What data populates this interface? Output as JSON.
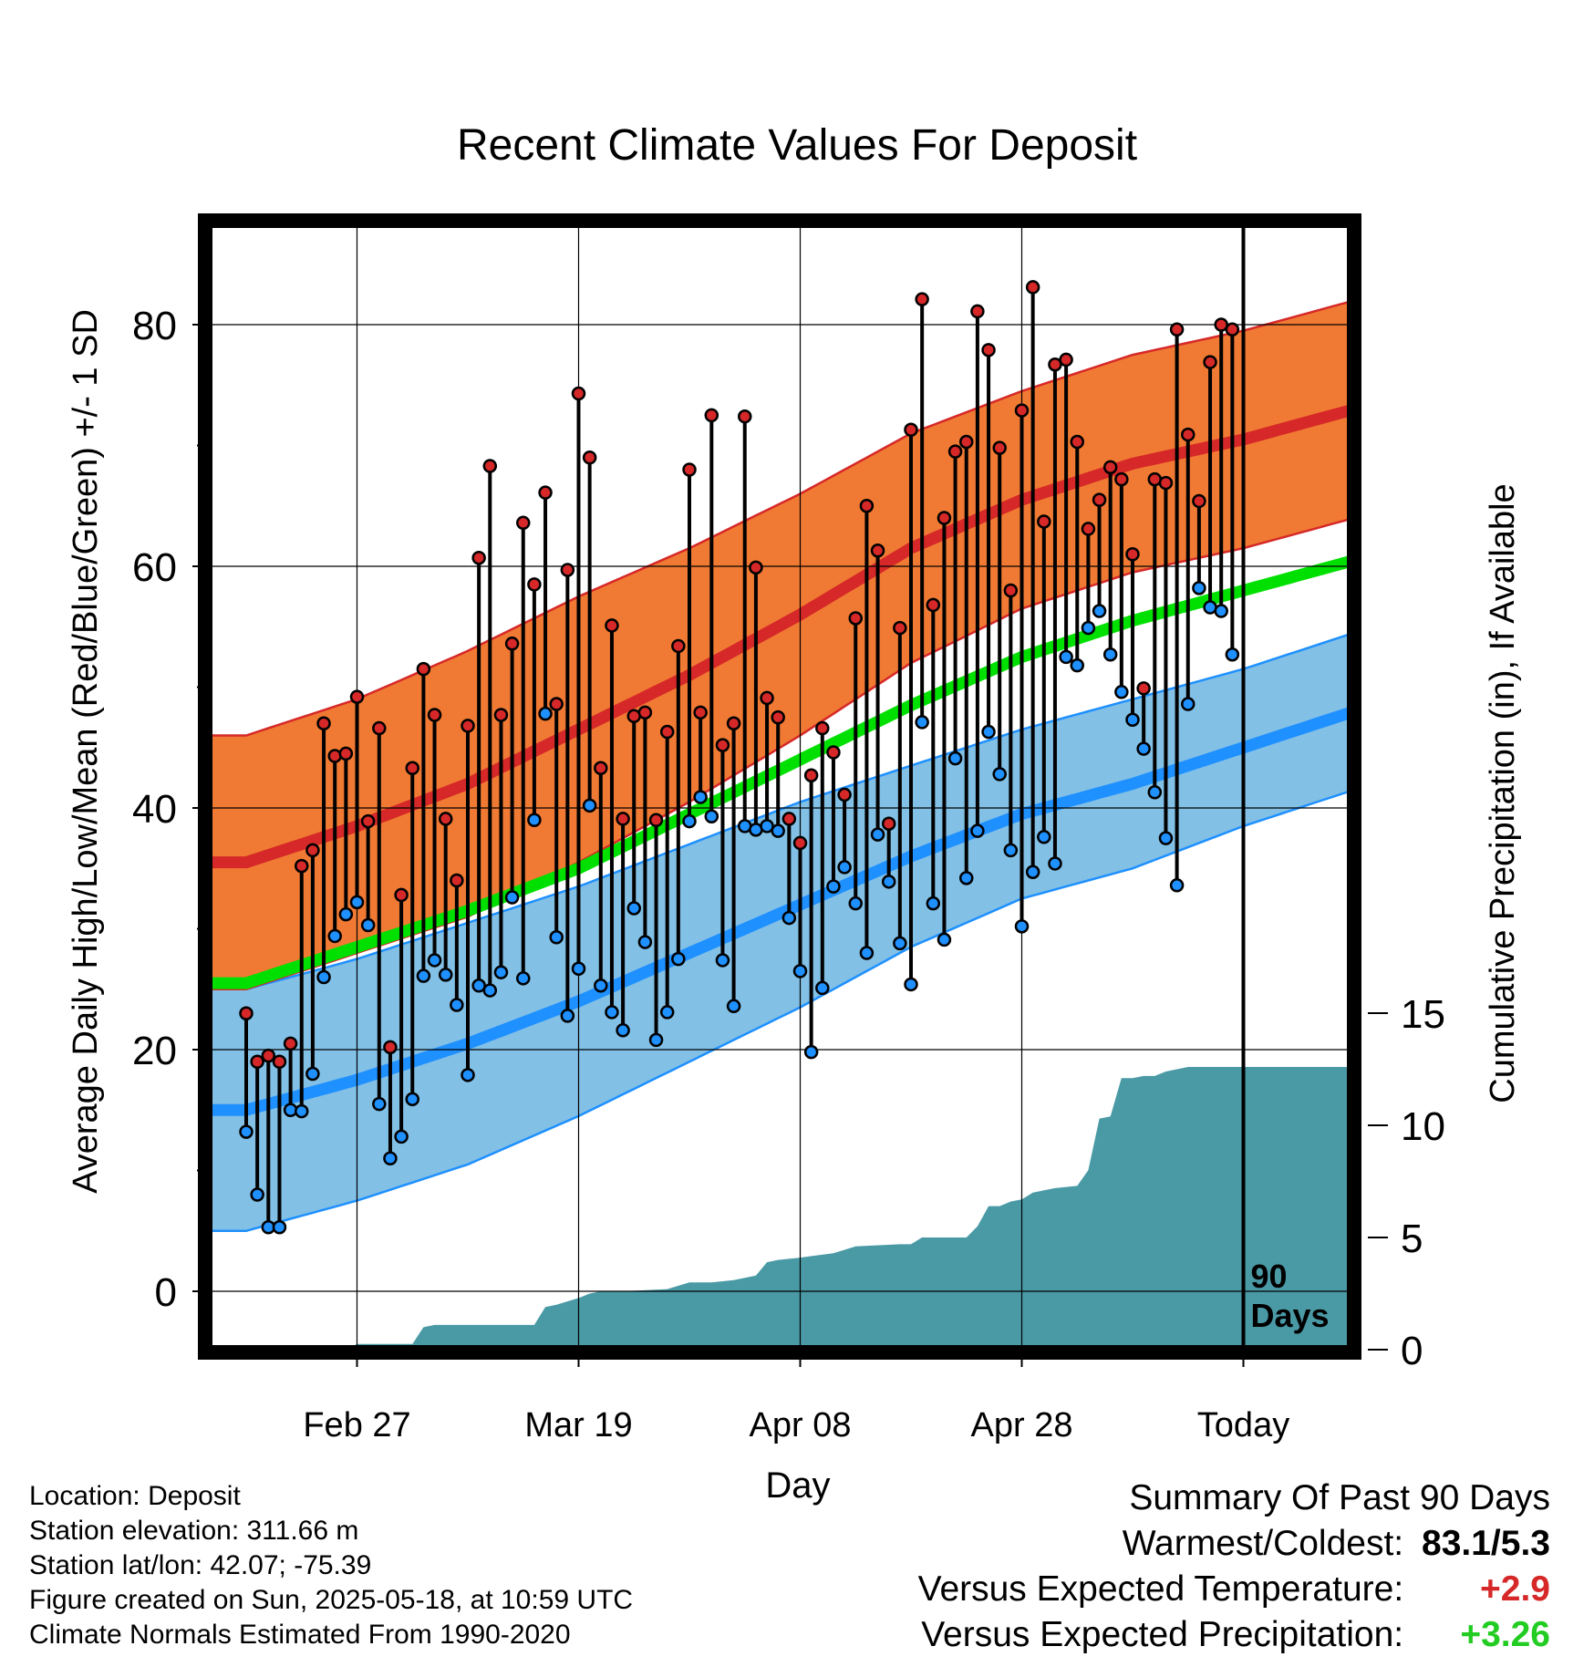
{
  "chart_data": {
    "type": "line",
    "title": "Recent Climate Values For Deposit",
    "xlabel": "Day",
    "ylabel": "Average Daily High/Low/Mean (Red/Blue/Green) +/- 1 SD",
    "y2label": "Cumulative Precipitation (in), If Available",
    "ylim": [
      -4,
      88
    ],
    "y2lim": [
      0,
      25
    ],
    "xlim": [
      0,
      100
    ],
    "x_ticks": [
      {
        "day": 10,
        "label": "Feb 27"
      },
      {
        "day": 30,
        "label": "Mar 19"
      },
      {
        "day": 50,
        "label": "Apr 08"
      },
      {
        "day": 70,
        "label": "Apr 28"
      },
      {
        "day": 90,
        "label": "Today"
      }
    ],
    "y_ticks": [
      0,
      20,
      40,
      60,
      80
    ],
    "y2_ticks": [
      0,
      5,
      10,
      15
    ],
    "today_marker": {
      "day": 90,
      "label_line1": "90",
      "label_line2": "Days"
    },
    "grid": true,
    "colors": {
      "high_band": "#f07a33",
      "high_line": "#d62828",
      "high_edge": "#d62828",
      "low_band": "#82c0e6",
      "low_line": "#1e90ff",
      "low_edge": "#1e90ff",
      "mean_line": "#00e000",
      "precip": "#4a9aa6",
      "high_marker": "#d62828",
      "low_marker": "#1e90ff"
    },
    "normals": {
      "days": [
        0,
        10,
        20,
        30,
        40,
        50,
        60,
        70,
        80,
        90,
        100
      ],
      "high_mean": [
        35.5,
        38.5,
        42,
        46.5,
        51,
        56,
        61.5,
        65.5,
        68.5,
        70.5,
        73
      ],
      "high_sd": [
        10.5,
        10.5,
        11,
        11,
        10.5,
        10,
        9.5,
        9,
        9,
        9,
        9
      ],
      "low_mean": [
        15,
        17.5,
        20.5,
        24,
        28,
        32,
        36,
        39.5,
        42,
        45,
        48
      ],
      "low_sd": [
        10,
        10,
        10,
        9.5,
        9,
        8.5,
        7.5,
        7,
        7,
        6.5,
        6.5
      ],
      "mean": [
        25.5,
        28.5,
        31.5,
        35,
        39.5,
        44,
        48.5,
        52.5,
        55.5,
        58,
        60.5
      ]
    },
    "daily": {
      "high": [
        23.0,
        19.0,
        19.5,
        19.0,
        20.5,
        35.2,
        36.5,
        47.0,
        44.3,
        44.5,
        49.2,
        38.9,
        46.6,
        20.2,
        32.8,
        43.3,
        51.5,
        47.7,
        39.1,
        34.0,
        46.8,
        60.7,
        68.3,
        47.7,
        53.6,
        63.6,
        58.5,
        66.1,
        48.6,
        59.7,
        74.3,
        69.0,
        43.3,
        55.1,
        39.1,
        47.6,
        47.9,
        39.0,
        46.3,
        53.4,
        68.0,
        47.9,
        72.5,
        45.2,
        47.0,
        72.4,
        59.9,
        49.1,
        47.5,
        39.1,
        37.1,
        42.7,
        46.6,
        44.6,
        41.1,
        55.7,
        65.0,
        61.3,
        38.7,
        54.9,
        71.3,
        82.1,
        56.8,
        64.0,
        69.5,
        70.3,
        81.1,
        77.9,
        69.8,
        58.0,
        72.9,
        83.1,
        63.7,
        76.7,
        77.1,
        70.3,
        63.1,
        65.5,
        68.2,
        67.2,
        61.0,
        49.9,
        67.2,
        66.9,
        79.6,
        70.9,
        65.4,
        76.9,
        80.0,
        79.6
      ],
      "low": [
        13.2,
        8.0,
        5.3,
        5.3,
        15.0,
        14.9,
        18.0,
        26.0,
        29.4,
        31.2,
        32.2,
        30.3,
        15.5,
        11.0,
        12.8,
        15.9,
        26.1,
        27.4,
        26.2,
        23.7,
        17.9,
        25.3,
        24.9,
        26.4,
        32.6,
        25.9,
        39.0,
        47.8,
        29.3,
        22.8,
        26.7,
        40.2,
        25.3,
        23.1,
        21.6,
        31.7,
        28.9,
        20.8,
        23.1,
        27.5,
        38.9,
        40.9,
        39.3,
        27.4,
        23.6,
        38.5,
        38.2,
        38.5,
        38.1,
        30.9,
        26.5,
        19.8,
        25.1,
        33.5,
        35.1,
        32.1,
        28.0,
        37.8,
        33.9,
        28.8,
        25.4,
        47.1,
        32.1,
        29.1,
        44.1,
        34.2,
        38.1,
        46.3,
        42.8,
        36.5,
        30.2,
        34.7,
        37.6,
        35.4,
        52.5,
        51.8,
        54.9,
        56.3,
        52.7,
        49.6,
        47.3,
        44.9,
        41.3,
        37.5,
        33.6,
        48.6,
        58.2,
        56.6,
        56.3,
        52.7
      ]
    },
    "cumulative_precip": {
      "days": [
        0,
        9,
        10,
        15,
        16,
        17,
        26,
        27,
        28,
        30,
        31,
        32,
        34,
        38,
        40,
        42,
        44,
        46,
        47,
        48,
        50,
        53,
        55,
        59,
        60,
        61,
        64,
        65,
        66,
        67,
        68,
        69,
        70,
        71,
        72,
        73,
        75,
        76,
        77,
        78,
        79,
        80,
        81,
        82,
        83,
        84,
        85,
        86,
        87,
        88,
        89,
        90,
        100
      ],
      "values": [
        0,
        0,
        0.25,
        0.25,
        1.0,
        1.1,
        1.1,
        1.9,
        2.0,
        2.3,
        2.5,
        2.6,
        2.6,
        2.7,
        3.0,
        3.0,
        3.1,
        3.3,
        3.9,
        4.0,
        4.1,
        4.3,
        4.6,
        4.7,
        4.7,
        5.0,
        5.0,
        5.0,
        5.5,
        6.4,
        6.4,
        6.6,
        6.7,
        7.0,
        7.1,
        7.2,
        7.3,
        8.0,
        10.3,
        10.4,
        12.1,
        12.1,
        12.2,
        12.2,
        12.4,
        12.5,
        12.6,
        12.6,
        12.6,
        12.6,
        12.6,
        12.6,
        12.6
      ]
    }
  },
  "info": {
    "location": "Location: Deposit",
    "elevation": "Station elevation: 311.66 m",
    "latlon": "Station lat/lon: 42.07; -75.39",
    "created": "Figure created on Sun, 2025-05-18, at 10:59 UTC",
    "normals": "Climate Normals Estimated From 1990-2020"
  },
  "summary": {
    "title": "Summary Of Past 90 Days",
    "warmest_label": "Warmest/Coldest:",
    "warmest_value": "83.1/5.3",
    "temp_label": "Versus Expected Temperature:",
    "temp_value": "+2.9",
    "temp_color": "#d62828",
    "precip_label": "Versus Expected Precipitation:",
    "precip_value": "+3.26",
    "precip_color": "#22cc22"
  }
}
